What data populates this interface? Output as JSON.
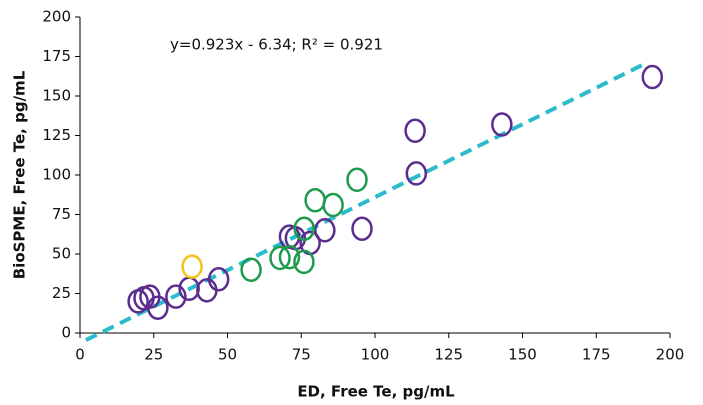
{
  "chart_data": {
    "type": "scatter",
    "annotation": "y=0.923x - 6.34; R² = 0.921",
    "x_label": "ED, Free Te, pg/mL",
    "y_label": "BioSPME, Free Te, pg/mL",
    "xlim": [
      0,
      200
    ],
    "xticks": [
      0,
      25,
      50,
      75,
      100,
      125,
      150,
      175,
      200
    ],
    "ylim": [
      0,
      200
    ],
    "yticks": [
      0,
      25,
      50,
      75,
      100,
      125,
      150,
      175,
      200
    ],
    "grid": false,
    "trendline": {
      "slope": 0.923,
      "intercept": -6.34,
      "x": [
        2,
        192
      ],
      "color": "#2bbccc"
    },
    "series": [
      {
        "color": "#5b2d8e",
        "x": [
          19.7,
          21.7,
          23.7,
          26.4,
          32.5,
          37,
          43,
          47,
          71,
          73,
          78,
          83,
          95.6,
          113.6,
          114,
          143,
          194
        ],
        "y": [
          20,
          22,
          23,
          16,
          23,
          28,
          27,
          34,
          61,
          60,
          57,
          65,
          66,
          128,
          101,
          132,
          162
        ]
      },
      {
        "color": "#1e9a4c",
        "x": [
          58,
          67.8,
          71,
          75.9,
          76,
          79.7,
          85.8,
          93.9
        ],
        "y": [
          40,
          47.5,
          48,
          45,
          66,
          84,
          81,
          97
        ]
      },
      {
        "color": "#f2c318",
        "x": [
          38
        ],
        "y": [
          42
        ]
      }
    ]
  }
}
